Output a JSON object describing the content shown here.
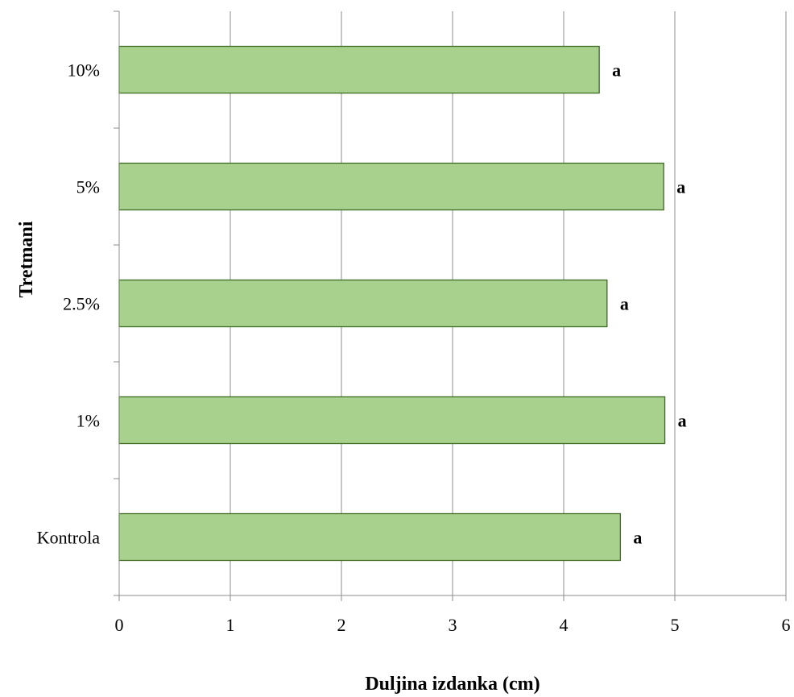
{
  "chart_data": {
    "type": "bar",
    "orientation": "horizontal",
    "categories": [
      "Kontrola",
      "1%",
      "2.5%",
      "5%",
      "10%"
    ],
    "values": [
      4.51,
      4.91,
      4.39,
      4.9,
      4.32
    ],
    "data_labels": [
      "a",
      "a",
      "a",
      "a",
      "a"
    ],
    "xlabel": "Duljina izdanka (cm)",
    "ylabel": "Tretmani",
    "xlim": [
      0,
      6
    ],
    "xticks": [
      "0",
      "1",
      "2",
      "3",
      "4",
      "5",
      "6"
    ],
    "grid": "vertical",
    "legend": "none",
    "colors": {
      "bar_fill": "#a9d18e",
      "bar_stroke": "#3d6b1f",
      "grid": "#8c8c8c",
      "axis": "#8c8c8c"
    }
  }
}
